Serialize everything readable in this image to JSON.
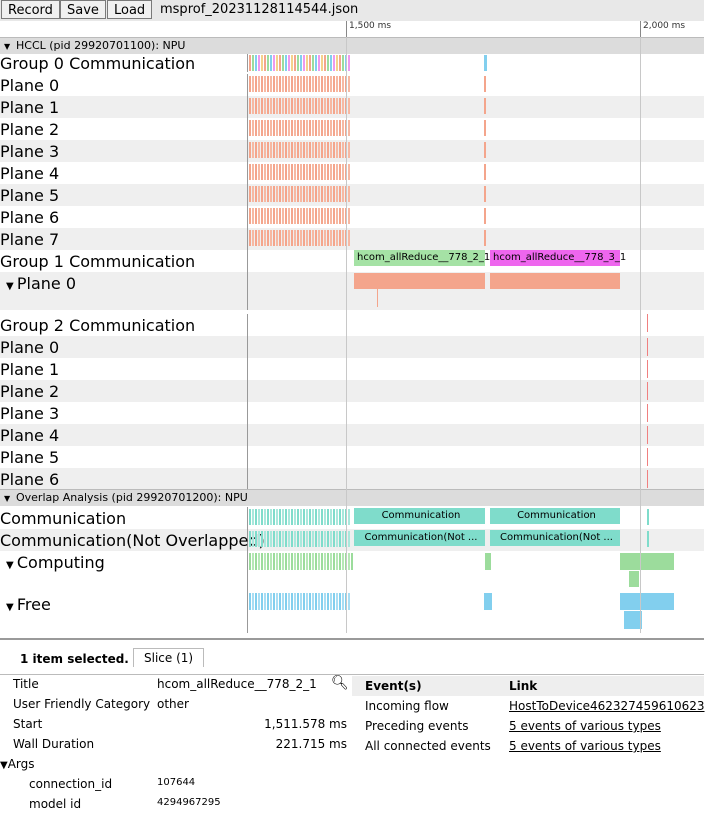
{
  "toolbar": {
    "record": "Record",
    "save": "Save",
    "load": "Load",
    "filename": "msprof_20231128114544.json"
  },
  "ruler": {
    "t1": "1,500 ms",
    "t2": "2,000 ms"
  },
  "hccl": {
    "header": "HCCL (pid 29920701100): NPU",
    "group0": {
      "title": "Group 0 Communication",
      "planes": [
        "Plane 0",
        "Plane 1",
        "Plane 2",
        "Plane 3",
        "Plane 4",
        "Plane 5",
        "Plane 6",
        "Plane 7"
      ]
    },
    "group1": {
      "title": "Group 1 Communication",
      "plane0": "Plane 0",
      "slice_a": "hcom_allReduce__778_2_1",
      "slice_b": "hcom_allReduce__778_3_1"
    },
    "group2": {
      "title": "Group 2 Communication",
      "planes": [
        "Plane 0",
        "Plane 1",
        "Plane 2",
        "Plane 3",
        "Plane 4",
        "Plane 5",
        "Plane 6"
      ]
    }
  },
  "overlap": {
    "header": "Overlap Analysis (pid 29920701200): NPU",
    "communication": "Communication",
    "comm_not_overlapped": "Communication(Not Overlapped)",
    "computing": "Computing",
    "free": "Free",
    "slice_comm": "Communication",
    "slice_comm_no": "Communication(Not ..."
  },
  "panel": {
    "selected": "1 item selected.",
    "tab": "Slice (1)",
    "title_label": "Title",
    "title_value": "hcom_allReduce__778_2_1",
    "category_label": "User Friendly Category",
    "category_value": "other",
    "start_label": "Start",
    "start_value": "1,511.578 ms",
    "wall_label": "Wall Duration",
    "wall_value": "221.715 ms",
    "args_label": "Args",
    "conn_label": "connection_id",
    "conn_value": "107644",
    "model_label": "model id",
    "model_value": "4294967295",
    "events_header": "Event(s)",
    "link_header": "Link",
    "incoming_label": "Incoming flow",
    "incoming_link": "HostToDevice462327459610623",
    "preceding_label": "Preceding events",
    "preceding_link": "5 events of various types",
    "connected_label": "All connected events",
    "connected_link": "5 events of various types"
  },
  "colors": {
    "salmon": "#f4a58c",
    "green": "#9cdc9c",
    "pink": "#ee66ee",
    "teal": "#7fdccb",
    "blue": "#82cfee"
  }
}
